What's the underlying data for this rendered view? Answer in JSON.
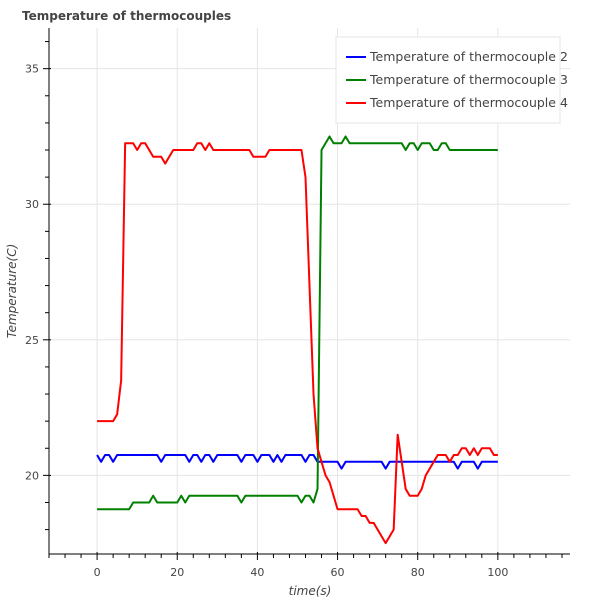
{
  "chart_data": {
    "type": "line",
    "title": "Temperature of thermocouples",
    "xlabel": "time(s)",
    "ylabel": "Temperature(C)",
    "xlim": [
      -12,
      118
    ],
    "ylim": [
      17.1,
      36.5
    ],
    "x_ticks": [
      0,
      20,
      40,
      60,
      80,
      100
    ],
    "y_ticks": [
      20,
      25,
      30,
      35
    ],
    "grid": true,
    "legend_position": "top-right",
    "series": [
      {
        "name": "Temperature of thermocouple 2",
        "color": "#0000ff",
        "points": [
          [
            0,
            20.75
          ],
          [
            1,
            20.5
          ],
          [
            2,
            20.75
          ],
          [
            3,
            20.75
          ],
          [
            4,
            20.5
          ],
          [
            5,
            20.75
          ],
          [
            10,
            20.75
          ],
          [
            15,
            20.75
          ],
          [
            16,
            20.5
          ],
          [
            17,
            20.75
          ],
          [
            22,
            20.75
          ],
          [
            23,
            20.5
          ],
          [
            24,
            20.75
          ],
          [
            25,
            20.75
          ],
          [
            26,
            20.5
          ],
          [
            27,
            20.75
          ],
          [
            28,
            20.75
          ],
          [
            29,
            20.5
          ],
          [
            30,
            20.75
          ],
          [
            35,
            20.75
          ],
          [
            36,
            20.5
          ],
          [
            37,
            20.75
          ],
          [
            39,
            20.75
          ],
          [
            40,
            20.5
          ],
          [
            41,
            20.75
          ],
          [
            43,
            20.75
          ],
          [
            44,
            20.5
          ],
          [
            45,
            20.75
          ],
          [
            46,
            20.5
          ],
          [
            47,
            20.75
          ],
          [
            51,
            20.75
          ],
          [
            52,
            20.5
          ],
          [
            53,
            20.75
          ],
          [
            54,
            20.75
          ],
          [
            55,
            20.5
          ],
          [
            60,
            20.5
          ],
          [
            61,
            20.25
          ],
          [
            62,
            20.5
          ],
          [
            71,
            20.5
          ],
          [
            72,
            20.25
          ],
          [
            73,
            20.5
          ],
          [
            89,
            20.5
          ],
          [
            90,
            20.25
          ],
          [
            91,
            20.5
          ],
          [
            94,
            20.5
          ],
          [
            95,
            20.25
          ],
          [
            96,
            20.5
          ],
          [
            100,
            20.5
          ]
        ]
      },
      {
        "name": "Temperature of thermocouple 3",
        "color": "#008000",
        "points": [
          [
            0,
            18.75
          ],
          [
            8,
            18.75
          ],
          [
            9,
            19
          ],
          [
            13,
            19
          ],
          [
            14,
            19.25
          ],
          [
            15,
            19
          ],
          [
            20,
            19
          ],
          [
            21,
            19.25
          ],
          [
            22,
            19
          ],
          [
            23,
            19.25
          ],
          [
            35,
            19.25
          ],
          [
            36,
            19
          ],
          [
            37,
            19.25
          ],
          [
            50,
            19.25
          ],
          [
            51,
            19
          ],
          [
            52,
            19.25
          ],
          [
            53,
            19.25
          ],
          [
            54,
            19
          ],
          [
            55,
            19.5
          ],
          [
            56,
            32
          ],
          [
            58,
            32.5
          ],
          [
            59,
            32.25
          ],
          [
            61,
            32.25
          ],
          [
            62,
            32.5
          ],
          [
            63,
            32.25
          ],
          [
            76,
            32.25
          ],
          [
            77,
            32
          ],
          [
            78,
            32.25
          ],
          [
            79,
            32.25
          ],
          [
            80,
            32
          ],
          [
            81,
            32.25
          ],
          [
            83,
            32.25
          ],
          [
            84,
            32
          ],
          [
            85,
            32
          ],
          [
            86,
            32.25
          ],
          [
            87,
            32.25
          ],
          [
            88,
            32
          ],
          [
            100,
            32
          ]
        ]
      },
      {
        "name": "Temperature of thermocouple 4",
        "color": "#ff0000",
        "points": [
          [
            0,
            22
          ],
          [
            4,
            22
          ],
          [
            5,
            22.25
          ],
          [
            6,
            23.5
          ],
          [
            7,
            32.25
          ],
          [
            9,
            32.25
          ],
          [
            10,
            32
          ],
          [
            11,
            32.25
          ],
          [
            12,
            32.25
          ],
          [
            14,
            31.75
          ],
          [
            16,
            31.75
          ],
          [
            17,
            31.5
          ],
          [
            18,
            31.75
          ],
          [
            19,
            32
          ],
          [
            24,
            32
          ],
          [
            25,
            32.25
          ],
          [
            26,
            32.25
          ],
          [
            27,
            32
          ],
          [
            28,
            32.25
          ],
          [
            29,
            32
          ],
          [
            38,
            32
          ],
          [
            39,
            31.75
          ],
          [
            42,
            31.75
          ],
          [
            43,
            32
          ],
          [
            51,
            32
          ],
          [
            52,
            31
          ],
          [
            53,
            27
          ],
          [
            54,
            23
          ],
          [
            55,
            21
          ],
          [
            56,
            20.5
          ],
          [
            57,
            20
          ],
          [
            58,
            19.75
          ],
          [
            59,
            19.25
          ],
          [
            60,
            18.75
          ],
          [
            65,
            18.75
          ],
          [
            66,
            18.5
          ],
          [
            67,
            18.5
          ],
          [
            68,
            18.25
          ],
          [
            69,
            18.25
          ],
          [
            70,
            18
          ],
          [
            71,
            17.75
          ],
          [
            72,
            17.5
          ],
          [
            73,
            17.75
          ],
          [
            74,
            18
          ],
          [
            75,
            21.5
          ],
          [
            76,
            20.5
          ],
          [
            77,
            19.5
          ],
          [
            78,
            19.25
          ],
          [
            80,
            19.25
          ],
          [
            81,
            19.5
          ],
          [
            82,
            20
          ],
          [
            83,
            20.25
          ],
          [
            84,
            20.5
          ],
          [
            85,
            20.75
          ],
          [
            87,
            20.75
          ],
          [
            88,
            20.5
          ],
          [
            89,
            20.75
          ],
          [
            90,
            20.75
          ],
          [
            91,
            21
          ],
          [
            92,
            21
          ],
          [
            93,
            20.75
          ],
          [
            94,
            21
          ],
          [
            95,
            20.75
          ],
          [
            96,
            21
          ],
          [
            98,
            21
          ],
          [
            99,
            20.75
          ],
          [
            100,
            20.75
          ]
        ]
      }
    ]
  }
}
